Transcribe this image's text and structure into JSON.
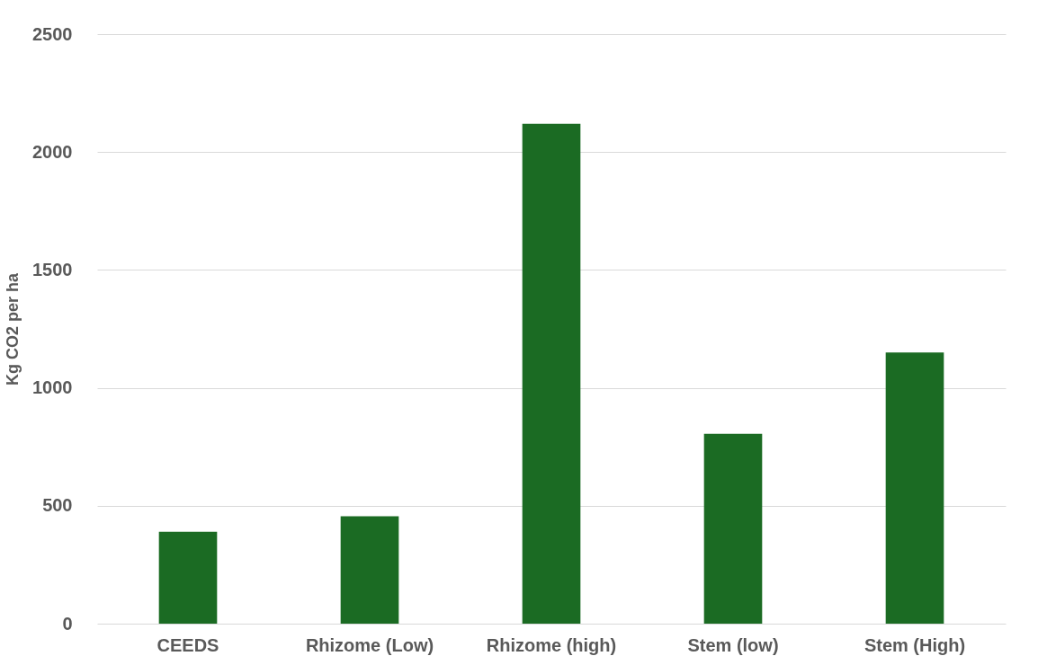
{
  "chart_data": {
    "type": "bar",
    "ylabel": "Kg CO2 per ha",
    "categories": [
      "CEEDS",
      "Rhizome (Low)",
      "Rhizome (high)",
      "Stem (low)",
      "Stem (High)"
    ],
    "values": [
      390,
      455,
      2120,
      805,
      1150
    ],
    "color": "#1b6b23",
    "ylim": [
      0,
      2500
    ],
    "yticks": [
      0,
      500,
      1000,
      1500,
      2000,
      2500
    ],
    "grid": "y"
  }
}
